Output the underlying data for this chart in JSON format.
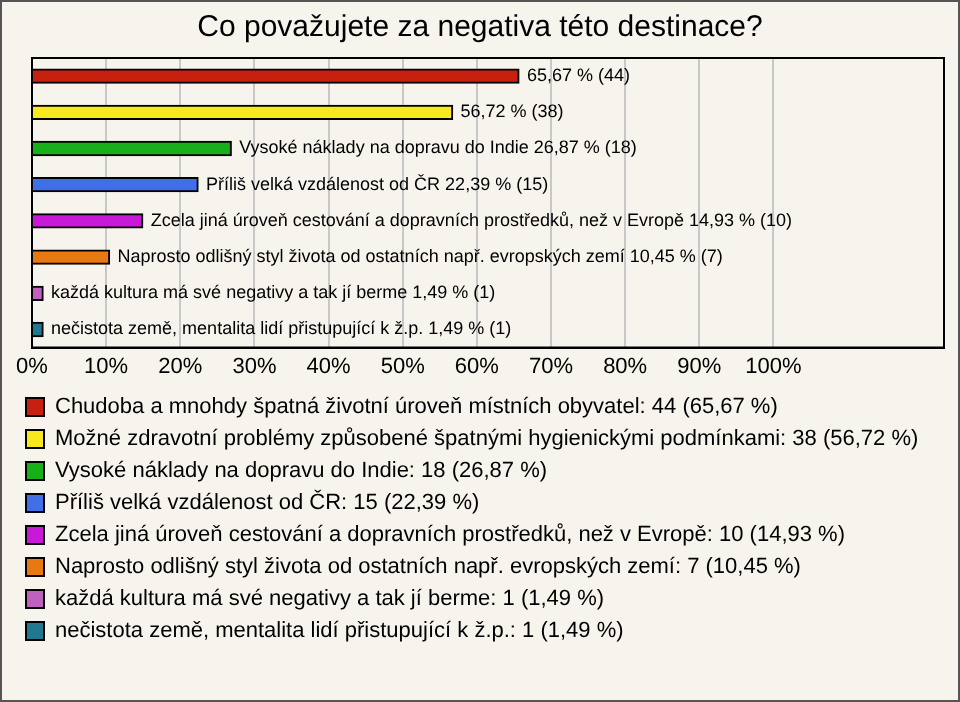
{
  "chart_data": {
    "type": "bar",
    "orientation": "horizontal",
    "title": "Co považujete za negativa této destinace?",
    "categories": [
      null,
      null,
      null,
      null,
      null,
      null,
      null,
      null
    ],
    "series": [
      {
        "name": "Chudoba a mnohdy špatná životní úroveň místních obyvatel: 44 (65,67 %)",
        "color": "#c8200e",
        "values": [
          65.67,
          null,
          null,
          null,
          null,
          null,
          null,
          null
        ],
        "value_labels": [
          "65,67 % (44)",
          null,
          null,
          null,
          null,
          null,
          null,
          null
        ]
      },
      {
        "name": "Možné zdravotní problémy způsobené špatnými hygienickými podmínkami: 38 (56,72 %)",
        "color": "#f8e81c",
        "values": [
          null,
          56.72,
          null,
          null,
          null,
          null,
          null,
          null
        ],
        "value_labels": [
          null,
          "56,72 % (38)",
          null,
          null,
          null,
          null,
          null,
          null
        ]
      },
      {
        "name": "Vysoké náklady na dopravu do Indie: 18 (26,87 %)",
        "color": "#18b018",
        "values": [
          null,
          null,
          26.87,
          null,
          null,
          null,
          null,
          null
        ],
        "value_labels": [
          null,
          null,
          "Vysoké náklady na dopravu do Indie 26,87 % (18)",
          null,
          null,
          null,
          null,
          null
        ]
      },
      {
        "name": "Příliš velká vzdálenost od ČR: 15 (22,39 %)",
        "color": "#4070e8",
        "values": [
          null,
          null,
          null,
          22.39,
          null,
          null,
          null,
          null
        ],
        "value_labels": [
          null,
          null,
          null,
          "Příliš velká vzdálenost od ČR 22,39 % (15)",
          null,
          null,
          null,
          null
        ]
      },
      {
        "name": "Zcela jiná úroveň cestování a dopravních prostředků, než v Evropě: 10 (14,93 %)",
        "color": "#c818d8",
        "values": [
          null,
          null,
          null,
          null,
          14.93,
          null,
          null,
          null
        ],
        "value_labels": [
          null,
          null,
          null,
          null,
          "Zcela jiná úroveň cestování a dopravních prostředků, než v Evropě 14,93 % (10)",
          null,
          null,
          null
        ]
      },
      {
        "name": "Naprosto odlišný styl života od ostatních např. evropských zemí: 7 (10,45 %)",
        "color": "#e87810",
        "values": [
          null,
          null,
          null,
          null,
          null,
          10.45,
          null,
          null
        ],
        "value_labels": [
          null,
          null,
          null,
          null,
          null,
          "Naprosto odlišný styl života od ostatních např. evropských zemí 10,45 % (7)",
          null,
          null
        ]
      },
      {
        "name": "každá kultura má své negativy a tak jí berme: 1 (1,49 %)",
        "color": "#c060c0",
        "values": [
          null,
          null,
          null,
          null,
          null,
          null,
          1.49,
          null
        ],
        "value_labels": [
          null,
          null,
          null,
          null,
          null,
          null,
          "každá kultura má své negativy a tak jí berme 1,49 % (1)",
          null
        ]
      },
      {
        "name": "nečistota země, mentalita lidí přistupující k ž.p.: 1 (1,49 %)",
        "color": "#207890",
        "values": [
          null,
          null,
          null,
          null,
          null,
          null,
          null,
          1.49
        ],
        "value_labels": [
          null,
          null,
          null,
          null,
          null,
          null,
          null,
          "nečistota země, mentalita lidí přistupující k ž.p. 1,49 % (1)"
        ]
      }
    ],
    "xlim": [
      0,
      123
    ],
    "xticks": [
      {
        "value": 0,
        "label": "0%"
      },
      {
        "value": 10,
        "label": "10%"
      },
      {
        "value": 20,
        "label": "20%"
      },
      {
        "value": 30,
        "label": "30%"
      },
      {
        "value": 40,
        "label": "40%"
      },
      {
        "value": 50,
        "label": "50%"
      },
      {
        "value": 60,
        "label": "60%"
      },
      {
        "value": 70,
        "label": "70%"
      },
      {
        "value": 80,
        "label": "80%"
      },
      {
        "value": 90,
        "label": "90%"
      },
      {
        "value": 100,
        "label": "100%"
      }
    ],
    "grid": "x",
    "tick_labels": "x",
    "legend": "bottom"
  }
}
